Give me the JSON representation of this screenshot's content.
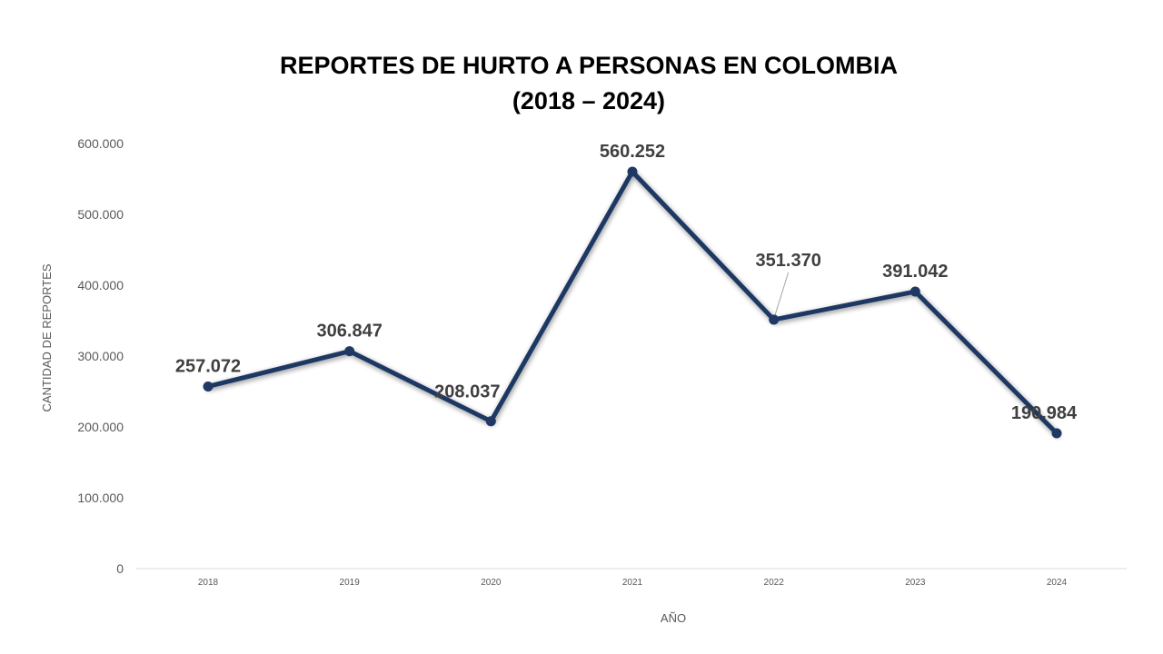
{
  "chart_data": {
    "type": "line",
    "title": [
      "REPORTES DE HURTO A PERSONAS EN COLOMBIA",
      "(2018 – 2024)"
    ],
    "xlabel": "AÑO",
    "ylabel": "CANTIDAD DE REPORTES",
    "categories": [
      "2018",
      "2019",
      "2020",
      "2021",
      "2022",
      "2023",
      "2024"
    ],
    "values": [
      257072,
      306847,
      208037,
      560252,
      351370,
      391042,
      190984
    ],
    "data_labels": [
      "257.072",
      "306.847",
      "208.037",
      "560.252",
      "351.370",
      "391.042",
      "190.984"
    ],
    "y_ticks": [
      0,
      100000,
      200000,
      300000,
      400000,
      500000,
      600000
    ],
    "y_tick_labels": [
      "0",
      "100.000",
      "200.000",
      "300.000",
      "400.000",
      "500.000",
      "600.000"
    ],
    "ylim": [
      0,
      600000
    ],
    "grid": false,
    "legend": "none",
    "line_color": "#1f3864",
    "baseline_color": "#d9d9d9"
  }
}
